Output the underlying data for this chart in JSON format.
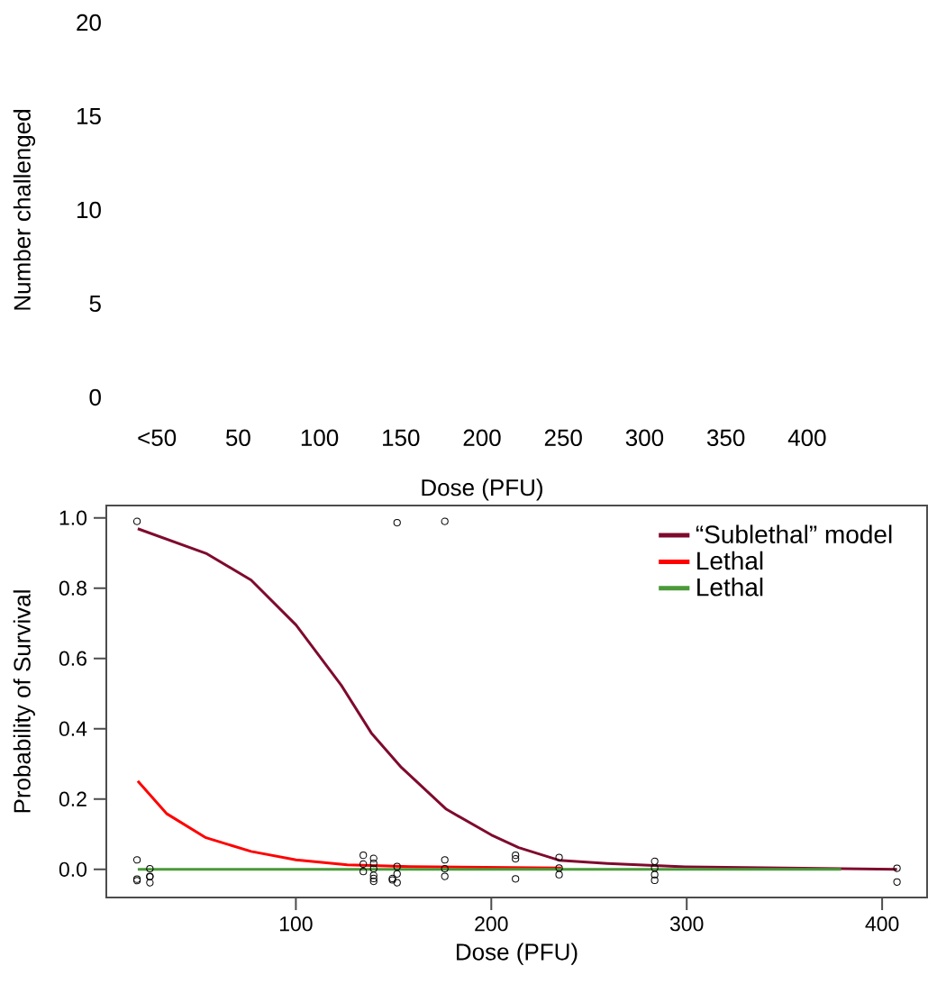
{
  "chart_data": [
    {
      "type": "bar",
      "categories": [
        "<50",
        "50",
        "100",
        "150",
        "200",
        "250",
        "300",
        "350",
        "400"
      ],
      "values": [
        null,
        null,
        null,
        null,
        null,
        null,
        null,
        null,
        null
      ],
      "ylim": [
        0,
        20
      ],
      "yticks": [
        0,
        5,
        10,
        15,
        20
      ],
      "xlabel": "Dose (PFU)",
      "ylabel": "Number challenged"
    },
    {
      "type": "scatter",
      "xlabel": "Dose (PFU)",
      "ylabel": "Probability of Survival",
      "xlim": [
        3,
        423
      ],
      "ylim": [
        -0.08,
        1.035
      ],
      "xticks": [
        100,
        200,
        300,
        400
      ],
      "yticks": [
        {
          "value": 0,
          "label": "0.0"
        },
        {
          "value": 0.2,
          "label": "0.2"
        },
        {
          "value": 0.4,
          "label": "0.4"
        },
        {
          "value": 0.6,
          "label": "0.6"
        },
        {
          "value": 0.8,
          "label": "0.8"
        },
        {
          "value": 1,
          "label": "1.0"
        }
      ],
      "legend": "top right",
      "series": [
        {
          "type": "scatter",
          "marker": "circle",
          "color": "#000000",
          "x": [
            18.7,
            18.7,
            18.7,
            18.7,
            25.3,
            25.3,
            25.3,
            25.3,
            134.5,
            134.5,
            134.5,
            139.8,
            139.8,
            139.8,
            139.8,
            139.8,
            139.8,
            151.8,
            151.8,
            151.8,
            149.4,
            149.4,
            151.8,
            176.2,
            176.2,
            176.2,
            176.2,
            212.4,
            212.4,
            212.4,
            234.7,
            234.7,
            234.7,
            283.6,
            283.6,
            283.6,
            283.6,
            407.6,
            407.6
          ],
          "values": [
            0.99,
            0.027,
            -0.028,
            -0.032,
            0.002,
            -0.02,
            -0.021,
            -0.038,
            0.04,
            0.015,
            -0.006,
            0.031,
            0.017,
            0.002,
            -0.017,
            -0.026,
            -0.034,
            0.986,
            0.008,
            -0.013,
            -0.026,
            -0.03,
            -0.038,
            0.99,
            0.027,
            0.002,
            -0.02,
            0.04,
            0.03,
            -0.027,
            0.034,
            0.004,
            -0.015,
            0.023,
            0.004,
            -0.015,
            -0.031,
            0.003,
            -0.036
          ]
        },
        {
          "type": "line",
          "name": "“Sublethal” model",
          "color": "#7f0a2e",
          "x": [
            19.1,
            54,
            77.1,
            100.1,
            123.2,
            138.6,
            154,
            177,
            200,
            214,
            234.7,
            259.4,
            299.3,
            379.2,
            407.6
          ],
          "values": [
            0.969,
            0.899,
            0.823,
            0.695,
            0.524,
            0.388,
            0.29,
            0.171,
            0.098,
            0.062,
            0.026,
            0.017,
            0.007,
            0.002,
            0.0
          ]
        },
        {
          "type": "line",
          "name": "Lethal",
          "color": "#ff0000",
          "x": [
            19.1,
            34,
            54,
            77.1,
            100.1,
            126.3,
            158.6,
            236
          ],
          "values": [
            0.251,
            0.158,
            0.09,
            0.051,
            0.027,
            0.013,
            0.008,
            0.004
          ]
        },
        {
          "type": "line",
          "name": "Lethal",
          "color": "#4a9a3a",
          "x": [
            19.1,
            379
          ],
          "values": [
            0.0,
            0.0
          ]
        }
      ]
    }
  ]
}
